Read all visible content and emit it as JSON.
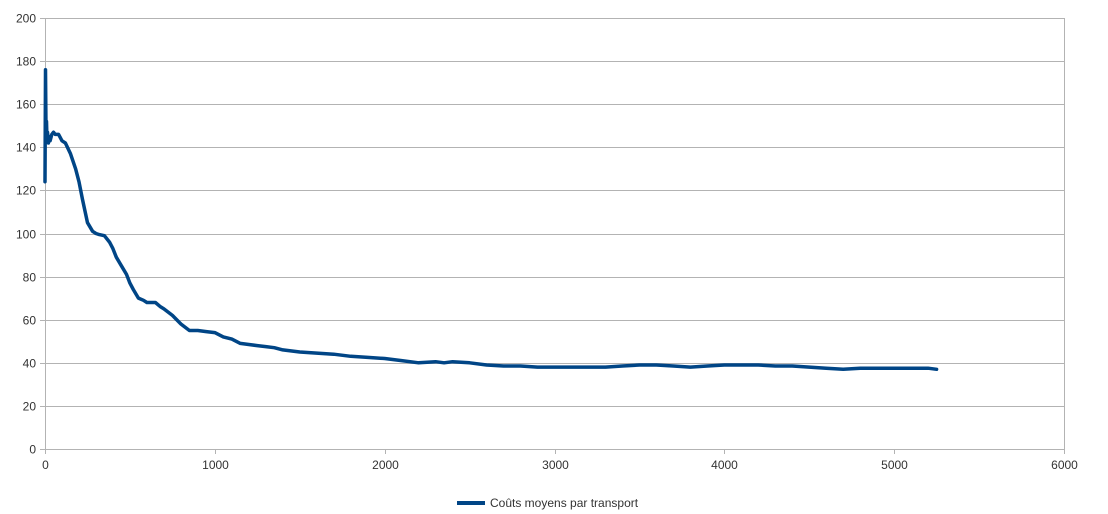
{
  "chart_data": {
    "type": "line",
    "title": "",
    "xlabel": "",
    "ylabel": "",
    "xlim": [
      0,
      6000
    ],
    "ylim": [
      0,
      200
    ],
    "x_ticks": [
      0,
      1000,
      2000,
      3000,
      4000,
      5000,
      6000
    ],
    "y_ticks": [
      0,
      20,
      40,
      60,
      80,
      100,
      120,
      140,
      160,
      180,
      200
    ],
    "grid": "horizontal",
    "legend_position": "bottom-center",
    "colors": {
      "series": "#004586",
      "grid": "#b3b3b3",
      "axis": "#b3b3b3"
    },
    "series": [
      {
        "name": "Coûts moyens par transport",
        "x": [
          0,
          3,
          6,
          9,
          12,
          15,
          20,
          25,
          30,
          40,
          50,
          60,
          80,
          100,
          120,
          150,
          180,
          200,
          220,
          250,
          280,
          300,
          320,
          350,
          380,
          400,
          420,
          450,
          480,
          500,
          520,
          550,
          580,
          600,
          620,
          650,
          680,
          700,
          750,
          800,
          850,
          900,
          950,
          1000,
          1050,
          1100,
          1150,
          1200,
          1250,
          1300,
          1350,
          1400,
          1500,
          1600,
          1700,
          1800,
          1900,
          2000,
          2100,
          2200,
          2300,
          2350,
          2400,
          2500,
          2600,
          2700,
          2800,
          2900,
          3000,
          3100,
          3200,
          3300,
          3400,
          3500,
          3600,
          3700,
          3800,
          3900,
          4000,
          4100,
          4200,
          4300,
          4400,
          4500,
          4600,
          4700,
          4800,
          4900,
          5000,
          5100,
          5200,
          5250
        ],
        "values": [
          124,
          176,
          148,
          152,
          143,
          147,
          142,
          145,
          143,
          146,
          147,
          146,
          146,
          143,
          142,
          137,
          130,
          124,
          116,
          105,
          101,
          100,
          99.5,
          99,
          96,
          93,
          89,
          85,
          81,
          77,
          74,
          70,
          69,
          68,
          68,
          68,
          66,
          65,
          62,
          58,
          55,
          55,
          54.5,
          54,
          52,
          51,
          49,
          48.5,
          48,
          47.5,
          47,
          46,
          45,
          44.5,
          44,
          43,
          42.5,
          42,
          41,
          40,
          40.5,
          40,
          40.5,
          40,
          39,
          38.5,
          38.5,
          38,
          38,
          38,
          38,
          38,
          38.5,
          39,
          39,
          38.5,
          38,
          38.5,
          39,
          39,
          39,
          38.5,
          38.5,
          38,
          37.5,
          37,
          37.5,
          37.5,
          37.5,
          37.5,
          37.5,
          37
        ]
      }
    ]
  }
}
